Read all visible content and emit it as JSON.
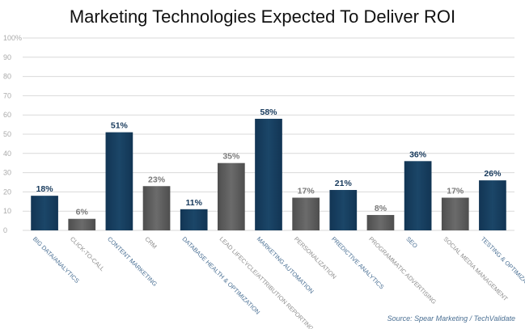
{
  "chart_data": {
    "type": "bar",
    "title": "Marketing Technologies Expected To Deliver ROI",
    "categories": [
      "BIG DATA/ANALYTICS",
      "CLICK-TO-CALL",
      "CONTENT MARKETING",
      "CRM",
      "DATABASE HEALTH & OPTIMIZATION",
      "LEAD LIFECYCLE/ATTRIBUTION REPORTING",
      "MARKETING AUTOMATION",
      "PERSONALIZATION",
      "PREDICTIVE ANALYTICS",
      "PROGRAMMATIC ADVERTISING",
      "SEO",
      "SOCIAL MEDIA MANAGEMENT",
      "TESTING & OPTIMIZATION"
    ],
    "values": [
      18,
      6,
      51,
      23,
      11,
      35,
      58,
      17,
      21,
      8,
      36,
      17,
      26
    ],
    "data_labels": [
      "18%",
      "6%",
      "51%",
      "23%",
      "11%",
      "35%",
      "58%",
      "17%",
      "21%",
      "8%",
      "36%",
      "17%",
      "26%"
    ],
    "highlighted": [
      true,
      false,
      true,
      false,
      true,
      false,
      true,
      false,
      true,
      false,
      true,
      false,
      true
    ],
    "ylim": [
      0,
      100
    ],
    "yticks": [
      "0",
      "10",
      "20",
      "30",
      "40",
      "50",
      "60",
      "70",
      "80",
      "90",
      "100%"
    ],
    "xlabel": "",
    "ylabel": "",
    "grid": true,
    "legend": "none",
    "colors": {
      "highlight_bar": "#1b4668",
      "highlight_label": "#183a5c",
      "other_bar": "#6b6b6b",
      "other_label": "#7a7a7a",
      "grid": "#d9d9d9",
      "tick_text": "#aaaaaa",
      "category_text_highlight": "#4a6f93",
      "category_text_other": "#8e8e8e"
    },
    "source": "Source: Spear Marketing / TechValidate"
  }
}
